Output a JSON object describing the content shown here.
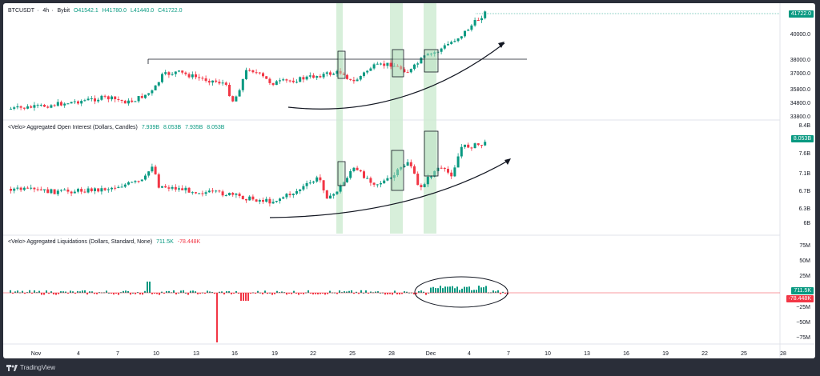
{
  "pane1": {
    "symbol": "BTCUSDT",
    "interval": "4h",
    "exchange": "Bybit",
    "open": "O41542.1",
    "high": "H41780.0",
    "low": "L41440.0",
    "close": "C41722.0",
    "price_tag": "41722.0",
    "axis": [
      "40000.0",
      "38000.0",
      "37000.0",
      "35800.0",
      "34800.0",
      "33800.0"
    ]
  },
  "pane2": {
    "title": "<Velo> Aggregated Open Interest (Dollars, Candles)",
    "open": "7.939B",
    "high": "8.053B",
    "low": "7.935B",
    "close": "8.053B",
    "price_tag": "8.053B",
    "axis": [
      "8.4B",
      "7.6B",
      "7.1B",
      "6.7B",
      "6.3B",
      "6B"
    ]
  },
  "pane3": {
    "title": "<Velo> Aggregated Liquidations (Dollars, Standard, None)",
    "value1": "711.5K",
    "value2": "-78.448K",
    "axis": [
      "75M",
      "50M",
      "25M",
      "−25M",
      "−50M",
      "−75M"
    ]
  },
  "xaxis": [
    "Nov",
    "4",
    "7",
    "10",
    "13",
    "16",
    "19",
    "22",
    "25",
    "28",
    "Dec",
    "4",
    "7",
    "10",
    "13",
    "16",
    "19",
    "22",
    "25",
    "28"
  ],
  "footer": {
    "brand": "TradingView"
  },
  "colors": {
    "up": "#089981",
    "down": "#f23645",
    "highlight": "#cdebd1",
    "box": "#2e6b3f"
  }
}
